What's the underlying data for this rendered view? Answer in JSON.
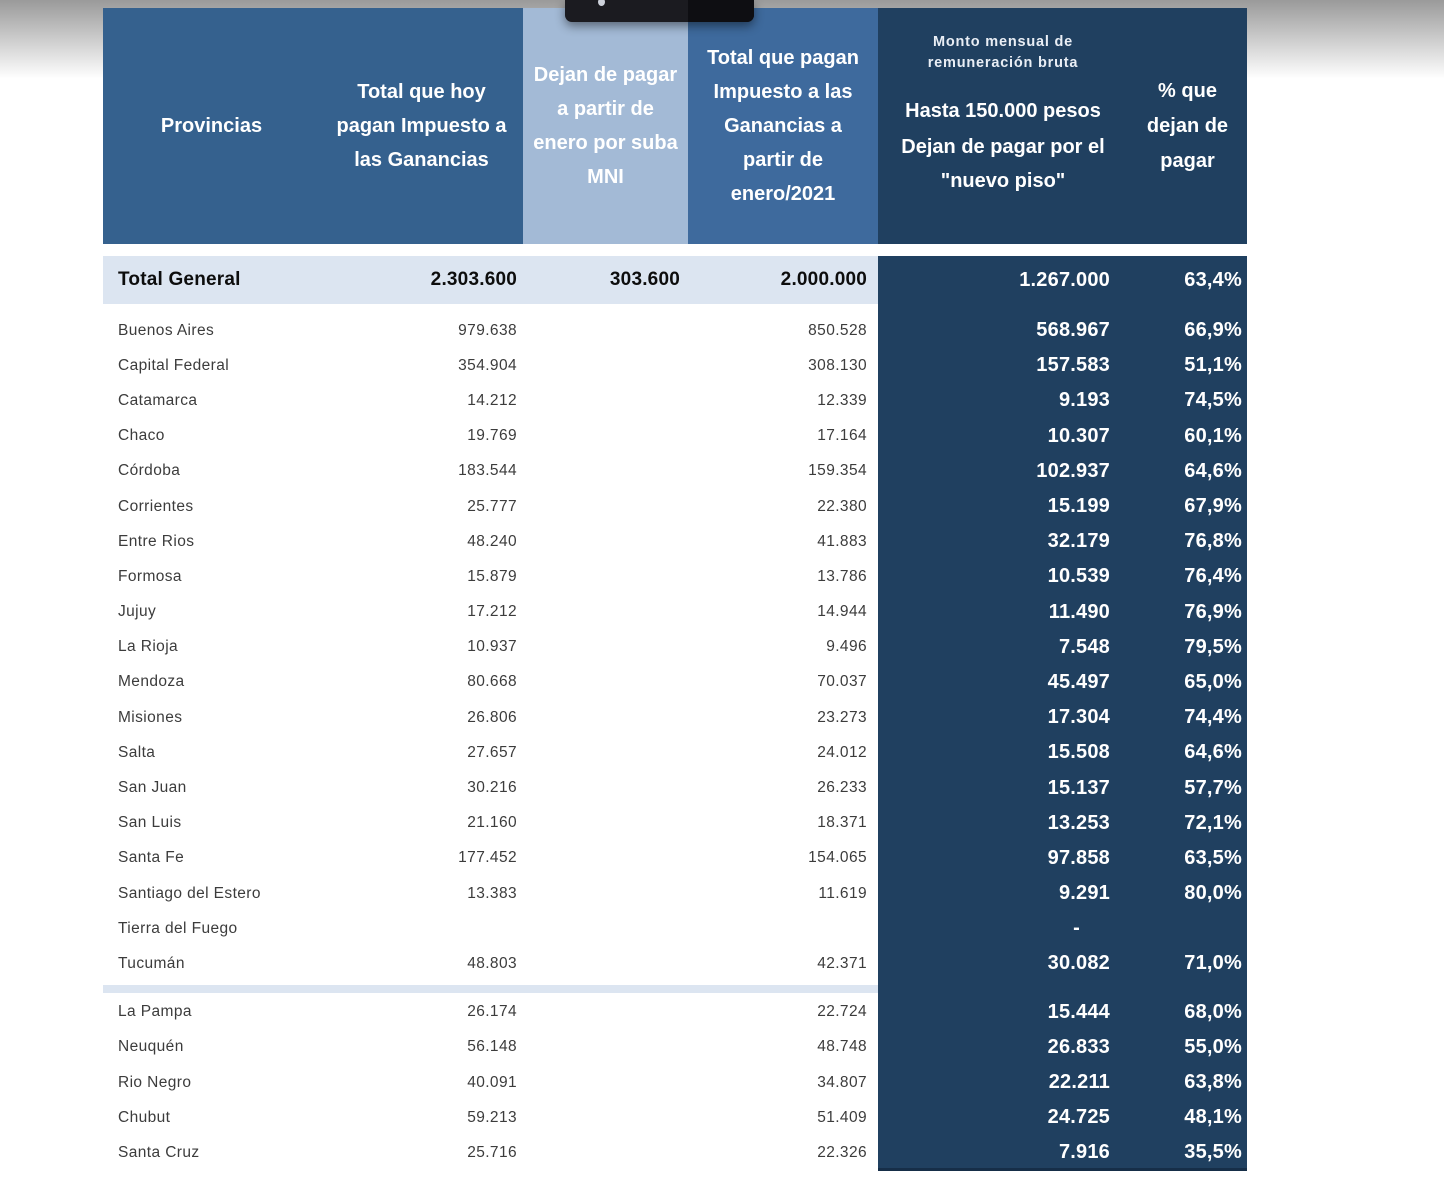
{
  "table": {
    "headers": {
      "provincias": "Provincias",
      "total_hoy": "Total que hoy pagan Impuesto a las Ganancias",
      "dejan_mni": "Dejan de pagar a partir de enero por suba MNI",
      "total_2021": "Total que pagan Impuesto a las Ganancias a partir de enero/2021",
      "monto_small": "Monto mensual de remuneración bruta",
      "monto_hasta": "Hasta 150.000 pesos",
      "monto_dejan": "Dejan de pagar por el \"nuevo piso\"",
      "pct": "% que dejan de pagar"
    },
    "total_row": {
      "label": "Total General",
      "today": "2.303.600",
      "stop": "303.600",
      "from2021": "2.000.000",
      "monto": "1.267.000",
      "pct": "63,4%"
    },
    "rows_main": [
      {
        "name": "Buenos Aires",
        "today": "979.638",
        "stop": "",
        "from2021": "850.528",
        "monto": "568.967",
        "pct": "66,9%"
      },
      {
        "name": "Capital Federal",
        "today": "354.904",
        "stop": "",
        "from2021": "308.130",
        "monto": "157.583",
        "pct": "51,1%"
      },
      {
        "name": "Catamarca",
        "today": "14.212",
        "stop": "",
        "from2021": "12.339",
        "monto": "9.193",
        "pct": "74,5%"
      },
      {
        "name": "Chaco",
        "today": "19.769",
        "stop": "",
        "from2021": "17.164",
        "monto": "10.307",
        "pct": "60,1%"
      },
      {
        "name": "Córdoba",
        "today": "183.544",
        "stop": "",
        "from2021": "159.354",
        "monto": "102.937",
        "pct": "64,6%"
      },
      {
        "name": "Corrientes",
        "today": "25.777",
        "stop": "",
        "from2021": "22.380",
        "monto": "15.199",
        "pct": "67,9%"
      },
      {
        "name": "Entre Rios",
        "today": "48.240",
        "stop": "",
        "from2021": "41.883",
        "monto": "32.179",
        "pct": "76,8%"
      },
      {
        "name": "Formosa",
        "today": "15.879",
        "stop": "",
        "from2021": "13.786",
        "monto": "10.539",
        "pct": "76,4%"
      },
      {
        "name": "Jujuy",
        "today": "17.212",
        "stop": "",
        "from2021": "14.944",
        "monto": "11.490",
        "pct": "76,9%"
      },
      {
        "name": "La Rioja",
        "today": "10.937",
        "stop": "",
        "from2021": "9.496",
        "monto": "7.548",
        "pct": "79,5%"
      },
      {
        "name": "Mendoza",
        "today": "80.668",
        "stop": "",
        "from2021": "70.037",
        "monto": "45.497",
        "pct": "65,0%"
      },
      {
        "name": "Misiones",
        "today": "26.806",
        "stop": "",
        "from2021": "23.273",
        "monto": "17.304",
        "pct": "74,4%"
      },
      {
        "name": "Salta",
        "today": "27.657",
        "stop": "",
        "from2021": "24.012",
        "monto": "15.508",
        "pct": "64,6%"
      },
      {
        "name": "San Juan",
        "today": "30.216",
        "stop": "",
        "from2021": "26.233",
        "monto": "15.137",
        "pct": "57,7%"
      },
      {
        "name": "San Luis",
        "today": "21.160",
        "stop": "",
        "from2021": "18.371",
        "monto": "13.253",
        "pct": "72,1%"
      },
      {
        "name": "Santa Fe",
        "today": "177.452",
        "stop": "",
        "from2021": "154.065",
        "monto": "97.858",
        "pct": "63,5%"
      },
      {
        "name": "Santiago del Estero",
        "today": "13.383",
        "stop": "",
        "from2021": "11.619",
        "monto": "9.291",
        "pct": "80,0%"
      },
      {
        "name": "Tierra del Fuego",
        "today": "",
        "stop": "",
        "from2021": "",
        "monto": "-",
        "pct": ""
      },
      {
        "name": "Tucumán",
        "today": "48.803",
        "stop": "",
        "from2021": "42.371",
        "monto": "30.082",
        "pct": "71,0%"
      }
    ],
    "rows_south": [
      {
        "name": "La Pampa",
        "today": "26.174",
        "stop": "",
        "from2021": "22.724",
        "monto": "15.444",
        "pct": "68,0%"
      },
      {
        "name": "Neuquén",
        "today": "56.148",
        "stop": "",
        "from2021": "48.748",
        "monto": "26.833",
        "pct": "55,0%"
      },
      {
        "name": "Rio Negro",
        "today": "40.091",
        "stop": "",
        "from2021": "34.807",
        "monto": "22.211",
        "pct": "63,8%"
      },
      {
        "name": "Chubut",
        "today": "59.213",
        "stop": "",
        "from2021": "51.409",
        "monto": "24.725",
        "pct": "48,1%"
      },
      {
        "name": "Santa Cruz",
        "today": "25.716",
        "stop": "",
        "from2021": "22.326",
        "monto": "7.916",
        "pct": "35,5%"
      }
    ],
    "colors": {
      "header_steel": "#35618E",
      "header_light_blue": "#A3BAD6",
      "header_medium_blue": "#3E6A9D",
      "navy_panel": "#204060",
      "total_row_bg": "#DCE5F1",
      "body_text": "#3C3C3C"
    }
  }
}
